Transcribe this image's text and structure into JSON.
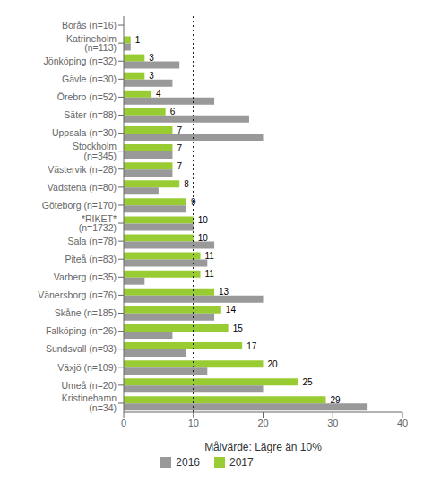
{
  "chart_data": {
    "type": "bar",
    "orientation": "horizontal",
    "categories": [
      "Borås (n=16)",
      "Katrineholm (n=113)",
      "Jönköping (n=32)",
      "Gävle (n=30)",
      "Örebro (n=52)",
      "Säter (n=88)",
      "Uppsala (n=30)",
      "Stockholm (n=345)",
      "Västervik (n=28)",
      "Vadstena (n=80)",
      "Göteborg (n=170)",
      "*RIKET* (n=1732)",
      "Sala (n=78)",
      "Piteå (n=83)",
      "Varberg (n=35)",
      "Vänersborg (n=76)",
      "Skåne (n=185)",
      "Falköping (n=26)",
      "Sundsvall (n=93)",
      "Växjö (n=109)",
      "Umeå (n=20)",
      "Kristinehamn (n=34)"
    ],
    "series": [
      {
        "name": "2016",
        "color": "#999999",
        "values": [
          0,
          1,
          8,
          7,
          13,
          18,
          20,
          7,
          7,
          5,
          9,
          10,
          13,
          12,
          3,
          20,
          13,
          7,
          9,
          12,
          20,
          35
        ]
      },
      {
        "name": "2017",
        "color": "#99cc33",
        "values": [
          0,
          1,
          3,
          3,
          4,
          6,
          7,
          7,
          7,
          8,
          9,
          10,
          10,
          11,
          11,
          13,
          14,
          15,
          17,
          20,
          25,
          29
        ],
        "data_labels": true
      }
    ],
    "xlabel": "Målvärde: Lägre än 10%",
    "xlim": [
      0,
      40
    ],
    "xticks": [
      0,
      10,
      20,
      30,
      40
    ],
    "grid": false,
    "legend": "bottom",
    "reference_lines": [
      {
        "x": 10,
        "line_style": "dotted"
      }
    ]
  }
}
